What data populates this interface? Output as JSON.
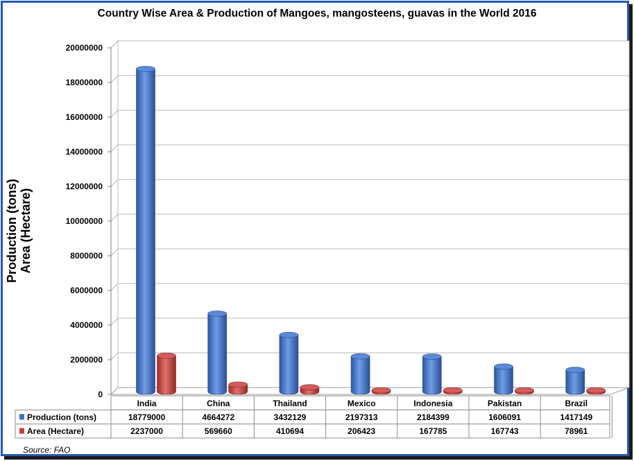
{
  "chart_data": {
    "type": "bar",
    "title": "Country Wise Area & Production of Mangoes, mangosteens, guavas in the World 2016",
    "ylabel_line1": "Production (tons)",
    "ylabel_line2": "Area (Hectare)",
    "categories": [
      "India",
      "China",
      "Thailand",
      "Mexico",
      "Indonesia",
      "Pakistan",
      "Brazil"
    ],
    "series": [
      {
        "name": "Production (tons)",
        "color": "#3f6fc6",
        "values": [
          18779000,
          4664272,
          3432129,
          2197313,
          2184399,
          1606091,
          1417149
        ]
      },
      {
        "name": "Area (Hectare)",
        "color": "#c0413e",
        "values": [
          2237000,
          569660,
          410694,
          206423,
          167785,
          167743,
          78961
        ]
      }
    ],
    "yticks": [
      "0",
      "2000000",
      "4000000",
      "6000000",
      "8000000",
      "10000000",
      "12000000",
      "14000000",
      "16000000",
      "18000000",
      "20000000"
    ],
    "ylim": [
      0,
      20000000
    ],
    "grid": true,
    "legend": "data-table",
    "source": "Source: FAO"
  }
}
